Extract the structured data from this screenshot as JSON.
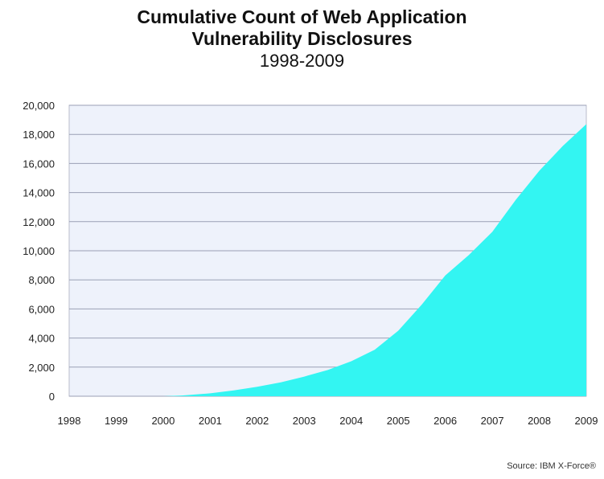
{
  "chart_data": {
    "type": "area",
    "title_line1": "Cumulative Count of Web Application",
    "title_line2": "Vulnerability Disclosures",
    "subtitle": "1998-2009",
    "x_ticks": [
      "1998",
      "1999",
      "2000",
      "2001",
      "2002",
      "2003",
      "2004",
      "2005",
      "2006",
      "2007",
      "2008",
      "2009"
    ],
    "y_ticks": [
      "0",
      "2,000",
      "4,000",
      "6,000",
      "8,000",
      "10,000",
      "12,000",
      "14,000",
      "16,000",
      "18,000",
      "20,000"
    ],
    "ylim": [
      0,
      20000
    ],
    "xlim": [
      1998,
      2009
    ],
    "grid": true,
    "fill_color": "#33f5f2",
    "plot_bg": "#eef2fb",
    "series": [
      {
        "x": [
          1998,
          1999,
          2000,
          2000.4,
          2001,
          2001.5,
          2002,
          2002.5,
          2003,
          2003.5,
          2004,
          2004.5,
          2005,
          2005.5,
          2006,
          2006.5,
          2007,
          2007.5,
          2008,
          2008.5,
          2009
        ],
        "values": [
          0,
          0,
          0,
          50,
          200,
          400,
          650,
          950,
          1350,
          1800,
          2400,
          3200,
          4500,
          6300,
          8300,
          9700,
          11300,
          13500,
          15500,
          17200,
          18700
        ]
      }
    ]
  },
  "source": "Source: IBM X-Force®"
}
